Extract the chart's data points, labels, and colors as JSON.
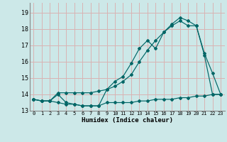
{
  "xlabel": "Humidex (Indice chaleur)",
  "background_color": "#cce8e8",
  "grid_color": "#d9b3b3",
  "line_color": "#006666",
  "xlim": [
    -0.5,
    23.5
  ],
  "ylim": [
    13.0,
    19.6
  ],
  "yticks": [
    13,
    14,
    15,
    16,
    17,
    18,
    19
  ],
  "xticks": [
    0,
    1,
    2,
    3,
    4,
    5,
    6,
    7,
    8,
    9,
    10,
    11,
    12,
    13,
    14,
    15,
    16,
    17,
    18,
    19,
    20,
    21,
    22,
    23
  ],
  "series1_x": [
    0,
    1,
    2,
    3,
    4,
    5,
    6,
    7,
    8,
    9,
    10,
    11,
    12,
    13,
    14,
    15,
    16,
    17,
    18,
    19,
    20,
    21,
    22,
    23
  ],
  "series1_y": [
    13.7,
    13.6,
    13.6,
    13.5,
    13.4,
    13.4,
    13.3,
    13.3,
    13.3,
    13.5,
    13.5,
    13.5,
    13.5,
    13.6,
    13.6,
    13.7,
    13.7,
    13.7,
    13.8,
    13.8,
    13.9,
    13.9,
    14.0,
    14.0
  ],
  "series2_x": [
    0,
    1,
    2,
    3,
    4,
    5,
    6,
    7,
    8,
    9,
    10,
    11,
    12,
    13,
    14,
    15,
    16,
    17,
    18,
    19,
    20,
    21,
    22,
    23
  ],
  "series2_y": [
    13.7,
    13.6,
    13.6,
    14.0,
    13.5,
    13.4,
    13.3,
    13.3,
    13.3,
    14.3,
    14.8,
    15.1,
    15.9,
    16.8,
    17.3,
    16.8,
    17.8,
    18.3,
    18.7,
    18.5,
    18.2,
    16.5,
    15.3,
    14.0
  ],
  "series3_x": [
    0,
    1,
    2,
    3,
    4,
    5,
    6,
    7,
    8,
    9,
    10,
    11,
    12,
    13,
    14,
    15,
    16,
    17,
    18,
    19,
    20,
    21,
    22,
    23
  ],
  "series3_y": [
    13.7,
    13.6,
    13.6,
    14.1,
    14.1,
    14.1,
    14.1,
    14.1,
    14.2,
    14.3,
    14.5,
    14.8,
    15.2,
    16.0,
    16.7,
    17.3,
    17.8,
    18.2,
    18.5,
    18.2,
    18.2,
    16.4,
    14.0,
    14.0
  ]
}
